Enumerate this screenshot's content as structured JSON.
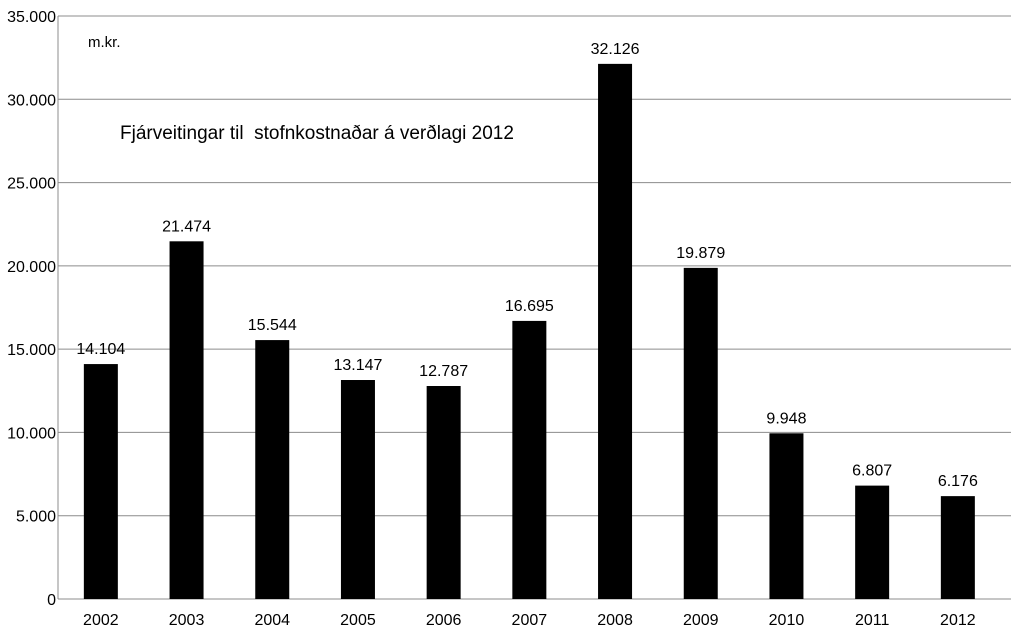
{
  "chart_data": {
    "type": "bar",
    "title": "Fjárveitingar til  stofnkostnaðar á verðlagi 2012",
    "unit_label": "m.kr.",
    "categories": [
      "2002",
      "2003",
      "2004",
      "2005",
      "2006",
      "2007",
      "2008",
      "2009",
      "2010",
      "2011",
      "2012"
    ],
    "values": [
      14104,
      21474,
      15544,
      13147,
      12787,
      16695,
      32126,
      19879,
      9948,
      6807,
      6176
    ],
    "data_labels": [
      "14.104",
      "21.474",
      "15.544",
      "13.147",
      "12.787",
      "16.695",
      "32.126",
      "19.879",
      "9.948",
      "6.807",
      "6.176"
    ],
    "y_ticks": [
      0,
      5000,
      10000,
      15000,
      20000,
      25000,
      30000,
      35000
    ],
    "y_tick_labels": [
      "0",
      "5.000",
      "10.000",
      "15.000",
      "20.000",
      "25.000",
      "30.000",
      "35.000"
    ],
    "ylim": [
      0,
      35000
    ],
    "xlabel": "",
    "ylabel": "",
    "grid": true,
    "legend": "none",
    "colors": {
      "bar": "#000000",
      "grid": "#8c8c8c",
      "axis": "#8c8c8c",
      "text": "#000000"
    }
  }
}
